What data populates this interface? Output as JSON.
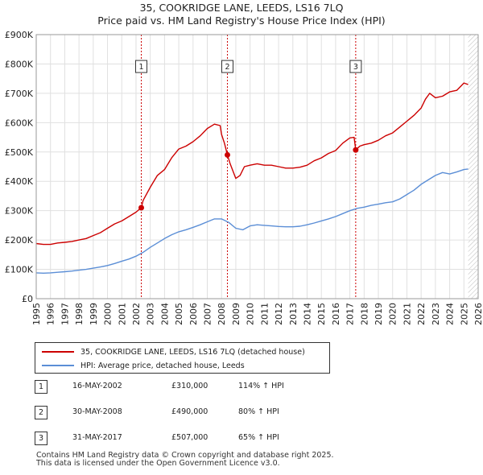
{
  "title_line1": "35, COOKRIDGE LANE, LEEDS, LS16 7LQ",
  "title_line2": "Price paid vs. HM Land Registry's House Price Index (HPI)",
  "colors": {
    "property": "#cc0000",
    "hpi": "#5b8ed6",
    "marker_line": "#cc0000",
    "grid": "#e0e0e0",
    "plot_bg": "#ffffff",
    "future_hatch": "#cccccc"
  },
  "chart_data": {
    "type": "line",
    "xlim": [
      1995,
      2026
    ],
    "ylim": [
      0,
      900000
    ],
    "y_ticks": [
      0,
      100000,
      200000,
      300000,
      400000,
      500000,
      600000,
      700000,
      800000,
      900000
    ],
    "y_tick_labels": [
      "£0",
      "£100K",
      "£200K",
      "£300K",
      "£400K",
      "£500K",
      "£600K",
      "£700K",
      "£800K",
      "£900K"
    ],
    "x_ticks": [
      1995,
      1996,
      1997,
      1998,
      1999,
      2000,
      2001,
      2002,
      2003,
      2004,
      2005,
      2006,
      2007,
      2008,
      2009,
      2010,
      2011,
      2012,
      2013,
      2014,
      2015,
      2016,
      2017,
      2018,
      2019,
      2020,
      2021,
      2022,
      2023,
      2024,
      2025,
      2026
    ],
    "x_tick_labels": [
      "1995",
      "1996",
      "1997",
      "1998",
      "1999",
      "2000",
      "2001",
      "2002",
      "2003",
      "2004",
      "2005",
      "2006",
      "2007",
      "2008",
      "2009",
      "2010",
      "2011",
      "2012",
      "2013",
      "2014",
      "2015",
      "2016",
      "2017",
      "2018",
      "2019",
      "2020",
      "2021",
      "2022",
      "2023",
      "2024",
      "2025",
      "2026"
    ],
    "data_end_x": 2025.3,
    "series": [
      {
        "name": "35, COOKRIDGE LANE, LEEDS, LS16 7LQ (detached house)",
        "key": "property",
        "x": [
          1995.0,
          1995.5,
          1996.0,
          1996.5,
          1997.0,
          1997.5,
          1998.0,
          1998.5,
          1999.0,
          1999.5,
          2000.0,
          2000.5,
          2001.0,
          2001.5,
          2002.0,
          2002.37,
          2002.5,
          2003.0,
          2003.5,
          2004.0,
          2004.5,
          2005.0,
          2005.5,
          2006.0,
          2006.5,
          2007.0,
          2007.5,
          2007.9,
          2008.0,
          2008.2,
          2008.41,
          2008.6,
          2009.0,
          2009.3,
          2009.6,
          2010.0,
          2010.5,
          2011.0,
          2011.5,
          2012.0,
          2012.5,
          2013.0,
          2013.5,
          2014.0,
          2014.5,
          2015.0,
          2015.5,
          2016.0,
          2016.5,
          2017.0,
          2017.3,
          2017.41,
          2017.7,
          2018.0,
          2018.5,
          2019.0,
          2019.5,
          2020.0,
          2020.5,
          2021.0,
          2021.5,
          2022.0,
          2022.3,
          2022.6,
          2023.0,
          2023.5,
          2024.0,
          2024.5,
          2025.0,
          2025.3
        ],
        "values": [
          188000,
          185000,
          185000,
          190000,
          192000,
          195000,
          200000,
          205000,
          215000,
          225000,
          240000,
          255000,
          265000,
          280000,
          295000,
          310000,
          335000,
          380000,
          420000,
          440000,
          480000,
          510000,
          520000,
          535000,
          555000,
          580000,
          595000,
          590000,
          560000,
          530000,
          490000,
          460000,
          410000,
          420000,
          450000,
          455000,
          460000,
          455000,
          455000,
          450000,
          445000,
          445000,
          448000,
          455000,
          470000,
          480000,
          495000,
          505000,
          530000,
          548000,
          550000,
          507000,
          520000,
          525000,
          530000,
          540000,
          555000,
          565000,
          585000,
          605000,
          625000,
          650000,
          680000,
          700000,
          685000,
          690000,
          705000,
          710000,
          735000,
          730000
        ]
      },
      {
        "name": "HPI: Average price, detached house, Leeds",
        "key": "hpi",
        "x": [
          1995.0,
          1995.5,
          1996.0,
          1996.5,
          1997.0,
          1997.5,
          1998.0,
          1998.5,
          1999.0,
          1999.5,
          2000.0,
          2000.5,
          2001.0,
          2001.5,
          2002.0,
          2002.5,
          2003.0,
          2003.5,
          2004.0,
          2004.5,
          2005.0,
          2005.5,
          2006.0,
          2006.5,
          2007.0,
          2007.5,
          2008.0,
          2008.5,
          2009.0,
          2009.5,
          2010.0,
          2010.5,
          2011.0,
          2011.5,
          2012.0,
          2012.5,
          2013.0,
          2013.5,
          2014.0,
          2014.5,
          2015.0,
          2015.5,
          2016.0,
          2016.5,
          2017.0,
          2017.5,
          2018.0,
          2018.5,
          2019.0,
          2019.5,
          2020.0,
          2020.5,
          2021.0,
          2021.5,
          2022.0,
          2022.5,
          2023.0,
          2023.5,
          2024.0,
          2024.5,
          2025.0,
          2025.3
        ],
        "values": [
          88000,
          87000,
          88000,
          90000,
          92000,
          94000,
          97000,
          100000,
          104000,
          108000,
          113000,
          120000,
          128000,
          135000,
          145000,
          158000,
          175000,
          190000,
          205000,
          218000,
          228000,
          235000,
          243000,
          252000,
          262000,
          272000,
          272000,
          260000,
          240000,
          235000,
          248000,
          252000,
          250000,
          248000,
          246000,
          245000,
          245000,
          247000,
          252000,
          258000,
          265000,
          272000,
          280000,
          290000,
          300000,
          308000,
          312000,
          318000,
          322000,
          327000,
          330000,
          340000,
          355000,
          370000,
          390000,
          405000,
          420000,
          430000,
          425000,
          432000,
          440000,
          442000
        ]
      }
    ],
    "sales": [
      {
        "label": "1",
        "x": 2002.37,
        "price": 310000
      },
      {
        "label": "2",
        "x": 2008.41,
        "price": 490000
      },
      {
        "label": "3",
        "x": 2017.41,
        "price": 507000
      }
    ],
    "marker_box_y": 790000
  },
  "legend": {
    "property_label": "35, COOKRIDGE LANE, LEEDS, LS16 7LQ (detached house)",
    "hpi_label": "HPI: Average price, detached house, Leeds"
  },
  "sales_table": [
    {
      "num": "1",
      "date": "16-MAY-2002",
      "price": "£310,000",
      "hpi": "114% ↑ HPI"
    },
    {
      "num": "2",
      "date": "30-MAY-2008",
      "price": "£490,000",
      "hpi": "80% ↑ HPI"
    },
    {
      "num": "3",
      "date": "31-MAY-2017",
      "price": "£507,000",
      "hpi": "65% ↑ HPI"
    }
  ],
  "footer_line1": "Contains HM Land Registry data © Crown copyright and database right 2025.",
  "footer_line2": "This data is licensed under the Open Government Licence v3.0."
}
